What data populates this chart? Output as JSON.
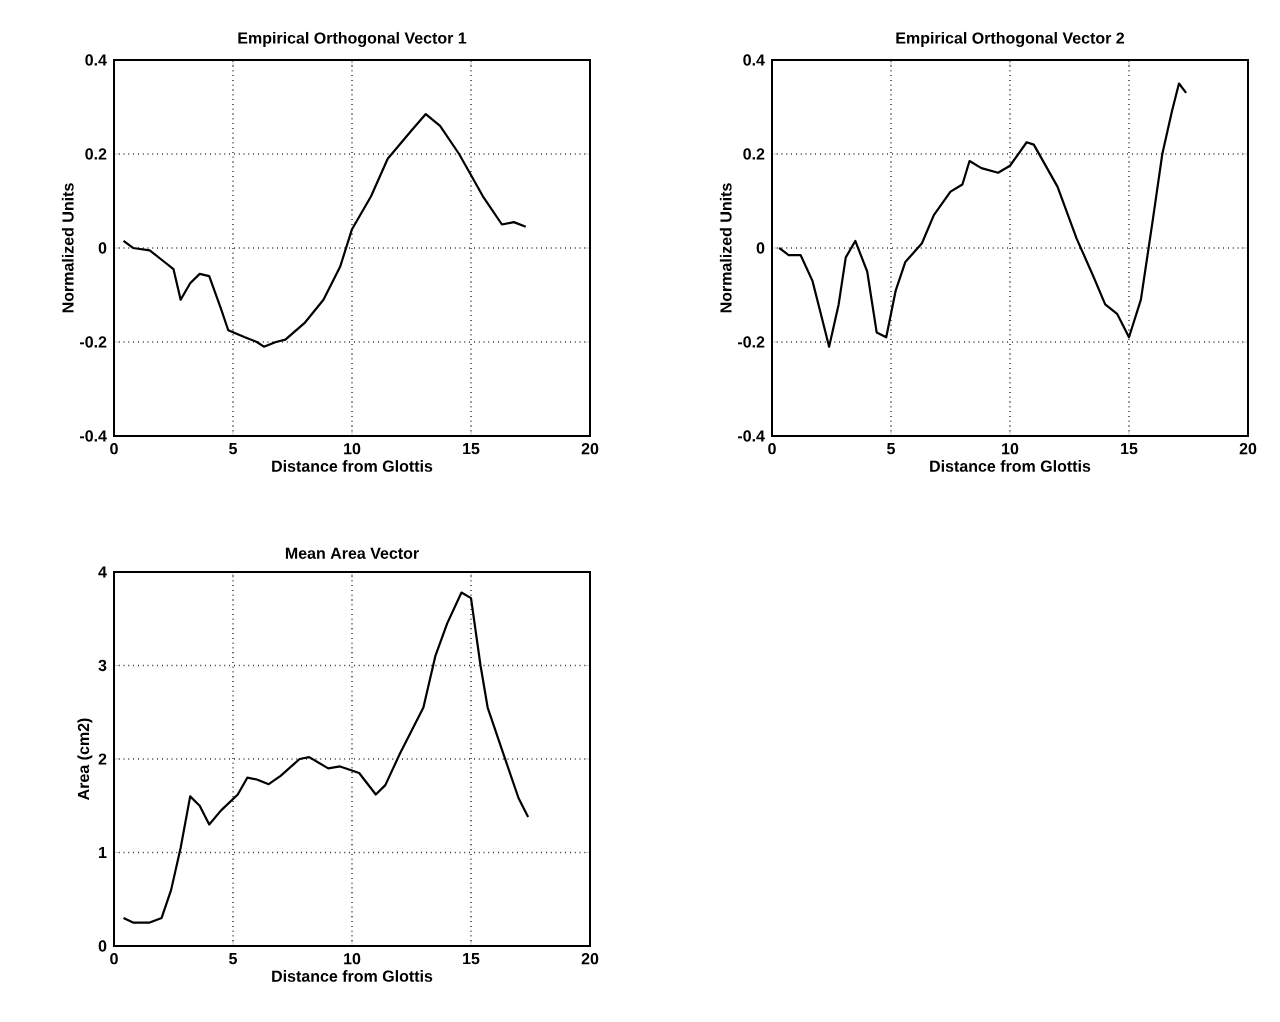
{
  "chart_data": [
    {
      "type": "line",
      "title": "Empirical Orthogonal Vector 1",
      "xlabel": "Distance from Glottis",
      "ylabel": "Normalized Units",
      "color": "#000000",
      "grid": true,
      "xlim": [
        0,
        20
      ],
      "ylim": [
        -0.4,
        0.4
      ],
      "xticks": [
        0,
        5,
        10,
        15,
        20
      ],
      "yticks": [
        -0.4,
        -0.2,
        0,
        0.2,
        0.4
      ],
      "x": [
        0.4,
        0.8,
        1.5,
        2,
        2.5,
        2.8,
        3.2,
        3.6,
        4.0,
        4.5,
        4.8,
        5.5,
        6.0,
        6.3,
        6.8,
        7.2,
        8,
        8.8,
        9.5,
        10,
        10.8,
        11.5,
        12.5,
        13.1,
        13.7,
        14.5,
        15.5,
        16.3,
        16.8,
        17.3
      ],
      "values": [
        0.015,
        0.0,
        -0.005,
        -0.025,
        -0.045,
        -0.11,
        -0.075,
        -0.055,
        -0.06,
        -0.13,
        -0.175,
        -0.19,
        -0.2,
        -0.21,
        -0.2,
        -0.195,
        -0.16,
        -0.11,
        -0.04,
        0.04,
        0.11,
        0.19,
        0.25,
        0.285,
        0.26,
        0.2,
        0.11,
        0.05,
        0.055,
        0.045
      ]
    },
    {
      "type": "line",
      "title": "Empirical Orthogonal Vector 2",
      "xlabel": "Distance from Glottis",
      "ylabel": "Normalized Units",
      "color": "#000000",
      "grid": true,
      "xlim": [
        0,
        20
      ],
      "ylim": [
        -0.4,
        0.4
      ],
      "xticks": [
        0,
        5,
        10,
        15,
        20
      ],
      "yticks": [
        -0.4,
        -0.2,
        0,
        0.2,
        0.4
      ],
      "x": [
        0.3,
        0.7,
        1.2,
        1.7,
        2.0,
        2.4,
        2.8,
        3.1,
        3.5,
        4.0,
        4.4,
        4.8,
        5.2,
        5.6,
        6.3,
        6.8,
        7.5,
        8.0,
        8.3,
        8.8,
        9.5,
        10.0,
        10.7,
        11.0,
        12.0,
        12.8,
        13.5,
        14.0,
        14.5,
        15.0,
        15.5,
        16.0,
        16.4,
        16.8,
        17.1,
        17.4
      ],
      "values": [
        0.0,
        -0.015,
        -0.015,
        -0.07,
        -0.13,
        -0.21,
        -0.12,
        -0.02,
        0.015,
        -0.05,
        -0.18,
        -0.19,
        -0.09,
        -0.03,
        0.01,
        0.07,
        0.12,
        0.135,
        0.185,
        0.17,
        0.16,
        0.175,
        0.225,
        0.22,
        0.13,
        0.02,
        -0.06,
        -0.12,
        -0.14,
        -0.19,
        -0.11,
        0.06,
        0.2,
        0.29,
        0.35,
        0.33
      ]
    },
    {
      "type": "line",
      "title": "Mean Area Vector",
      "xlabel": "Distance from Glottis",
      "ylabel": "Area (cm2)",
      "color": "#000000",
      "grid": true,
      "xlim": [
        0,
        20
      ],
      "ylim": [
        0,
        4
      ],
      "xticks": [
        0,
        5,
        10,
        15,
        20
      ],
      "yticks": [
        0,
        1,
        2,
        3,
        4
      ],
      "x": [
        0.4,
        0.8,
        1.5,
        2.0,
        2.4,
        2.8,
        3.2,
        3.6,
        4.0,
        4.5,
        5.2,
        5.6,
        6.0,
        6.5,
        7.0,
        7.8,
        8.2,
        9.0,
        9.5,
        10.3,
        11.0,
        11.4,
        12.0,
        13.0,
        13.5,
        14.0,
        14.6,
        15.0,
        15.4,
        15.7,
        16.3,
        17.0,
        17.4
      ],
      "values": [
        0.3,
        0.25,
        0.25,
        0.3,
        0.6,
        1.05,
        1.6,
        1.5,
        1.3,
        1.45,
        1.62,
        1.8,
        1.78,
        1.73,
        1.82,
        2.0,
        2.02,
        1.9,
        1.92,
        1.85,
        1.62,
        1.72,
        2.05,
        2.55,
        3.1,
        3.45,
        3.78,
        3.72,
        3.0,
        2.55,
        2.1,
        1.58,
        1.38
      ]
    }
  ]
}
